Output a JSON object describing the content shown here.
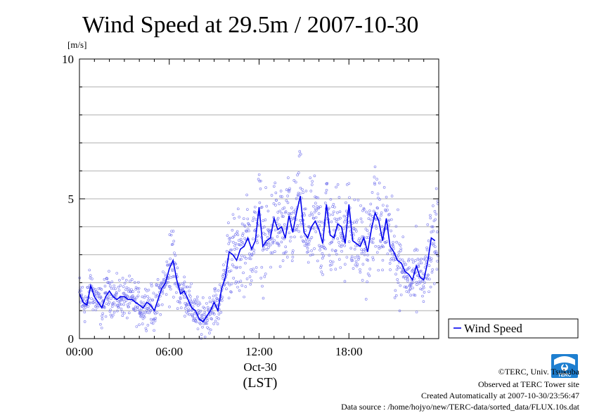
{
  "chart_data": {
    "type": "scatter",
    "title": "Wind Speed at 29.5m / 2007-10-30",
    "ylabel": "[m/s]",
    "ylim": [
      0,
      10
    ],
    "yticks": [
      0,
      5,
      10
    ],
    "xlim": [
      0,
      24
    ],
    "xticks": [
      {
        "value": 0,
        "label": "00:00"
      },
      {
        "value": 6,
        "label": "06:00"
      },
      {
        "value": 12,
        "label": "12:00"
      },
      {
        "value": 18,
        "label": "18:00"
      }
    ],
    "date_label": "Oct-30",
    "time_zone_label": "(LST)",
    "grid": true,
    "legend": {
      "position": "right",
      "entries": [
        "Wind Speed"
      ]
    },
    "series": [
      {
        "name": "Wind Speed",
        "color": "#0000ee",
        "x": [
          0,
          0.25,
          0.5,
          0.75,
          1,
          1.25,
          1.5,
          1.75,
          2,
          2.25,
          2.5,
          2.75,
          3,
          3.25,
          3.5,
          3.75,
          4,
          4.25,
          4.5,
          4.75,
          5,
          5.25,
          5.5,
          5.75,
          6,
          6.25,
          6.5,
          6.75,
          7,
          7.25,
          7.5,
          7.75,
          8,
          8.25,
          8.5,
          8.75,
          9,
          9.25,
          9.5,
          9.75,
          10,
          10.25,
          10.5,
          10.75,
          11,
          11.25,
          11.5,
          11.75,
          12,
          12.25,
          12.5,
          12.75,
          13,
          13.25,
          13.5,
          13.75,
          14,
          14.25,
          14.5,
          14.75,
          15,
          15.25,
          15.5,
          15.75,
          16,
          16.25,
          16.5,
          16.75,
          17,
          17.25,
          17.5,
          17.75,
          18,
          18.25,
          18.5,
          18.75,
          19,
          19.25,
          19.5,
          19.75,
          20,
          20.25,
          20.5,
          20.75,
          21,
          21.25,
          21.5,
          21.75,
          22,
          22.25,
          22.5,
          22.75,
          23,
          23.25,
          23.5,
          23.75
        ],
        "y": [
          1.6,
          1.3,
          1.2,
          1.9,
          1.5,
          1.3,
          1.1,
          1.5,
          1.7,
          1.5,
          1.4,
          1.5,
          1.5,
          1.4,
          1.4,
          1.3,
          1.2,
          1.1,
          1.3,
          1.2,
          1.0,
          1.4,
          1.8,
          2.0,
          2.5,
          2.8,
          2.1,
          1.6,
          1.7,
          1.4,
          1.1,
          1.0,
          0.7,
          0.6,
          0.8,
          1.0,
          1.3,
          1.0,
          1.8,
          2.2,
          3.1,
          3.0,
          2.8,
          3.2,
          3.3,
          3.6,
          3.2,
          3.5,
          4.7,
          3.3,
          3.5,
          3.6,
          4.3,
          3.9,
          4.0,
          3.6,
          4.4,
          3.8,
          4.5,
          5.1,
          3.8,
          3.6,
          4.0,
          4.2,
          3.9,
          3.4,
          4.8,
          3.7,
          3.6,
          4.1,
          4.0,
          3.4,
          4.8,
          3.5,
          3.4,
          3.3,
          3.6,
          3.1,
          3.9,
          4.5,
          4.2,
          3.5,
          4.3,
          3.3,
          3.1,
          2.8,
          2.7,
          2.4,
          2.3,
          2.1,
          2.6,
          2.2,
          2.1,
          2.7,
          3.6,
          3.5
        ]
      }
    ]
  },
  "footer": {
    "copyright": "©TERC, Univ. Tsukuba",
    "observed": "Observed at TERC Tower site",
    "created": "Created Automatically at 2007-10-30/23:56:47",
    "source": "Data source : /home/hojyo/new/TERC-data/sorted_data/FLUX.10s.dat",
    "logo_text": "TERC"
  }
}
